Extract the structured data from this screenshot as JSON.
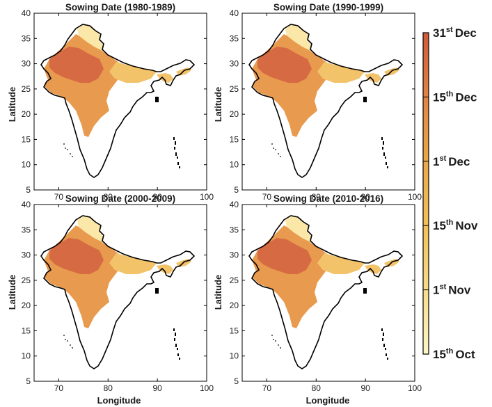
{
  "figure": {
    "xlabel": "Longitude",
    "ylabel": "Latitude",
    "x_ticks": [
      "70",
      "80",
      "90",
      "100"
    ],
    "y_ticks": [
      "5",
      "10",
      "15",
      "20",
      "25",
      "30",
      "35",
      "40"
    ],
    "x_range": [
      65,
      100
    ],
    "y_range": [
      5,
      40
    ]
  },
  "panels": [
    {
      "title": "Sowing Date (1980-1989)"
    },
    {
      "title": "Sowing Date (1990-1999)"
    },
    {
      "title": "Sowing Date (2000-2009)"
    },
    {
      "title": "Sowing Date (2010-2016)"
    }
  ],
  "colorbar": {
    "labels": [
      {
        "day": "31",
        "suffix": "st",
        "month": "Dec"
      },
      {
        "day": "15",
        "suffix": "th",
        "month": "Dec"
      },
      {
        "day": "1",
        "suffix": "st",
        "month": "Dec"
      },
      {
        "day": "15",
        "suffix": "th",
        "month": "Nov"
      },
      {
        "day": "1",
        "suffix": "st",
        "month": "Nov"
      },
      {
        "day": "15",
        "suffix": "th",
        "month": "Oct"
      }
    ],
    "colors_top_to_bottom": [
      "#cf5a3b",
      "#e08444",
      "#eaa84a",
      "#f1c15a",
      "#f7dc8a",
      "#fdf6c8"
    ]
  },
  "colors": {
    "late": "#d66a43",
    "mid": "#e89a4e",
    "early": "#f3c36a",
    "earliest": "#fbe7a8",
    "outline": "#000000"
  }
}
